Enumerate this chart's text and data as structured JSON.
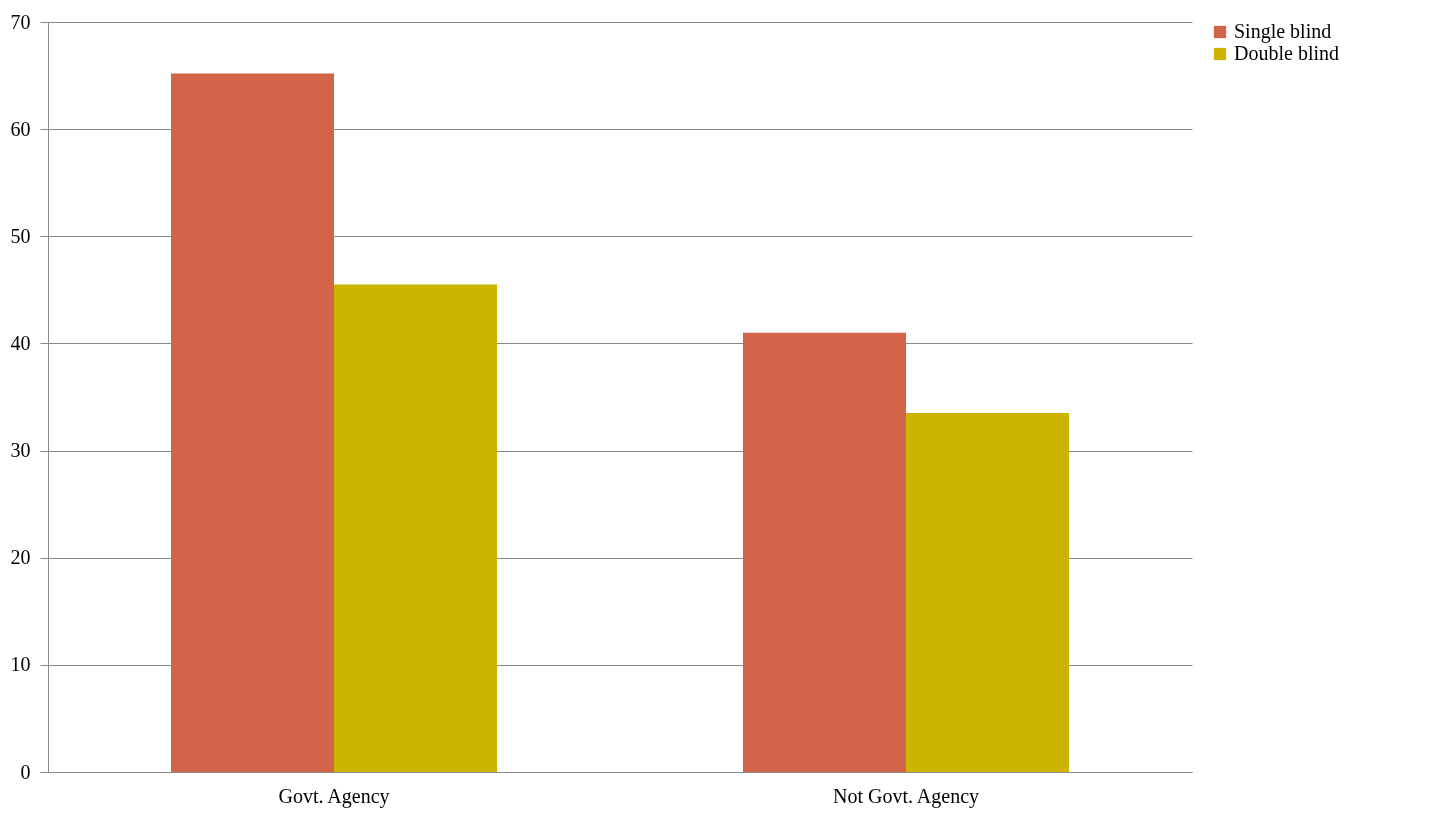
{
  "chart_data": {
    "type": "bar",
    "categories": [
      "Govt. Agency",
      "Not Govt. Agency"
    ],
    "series": [
      {
        "name": "Single blind",
        "color": "#d2644a",
        "values": [
          65.2,
          41
        ]
      },
      {
        "name": "Double blind",
        "color": "#ccb400",
        "values": [
          45.5,
          33.5
        ]
      }
    ],
    "ylim": [
      0,
      70
    ],
    "yticks": [
      0,
      10,
      20,
      30,
      40,
      50,
      60,
      70
    ],
    "grid": "y",
    "legend": "right"
  }
}
